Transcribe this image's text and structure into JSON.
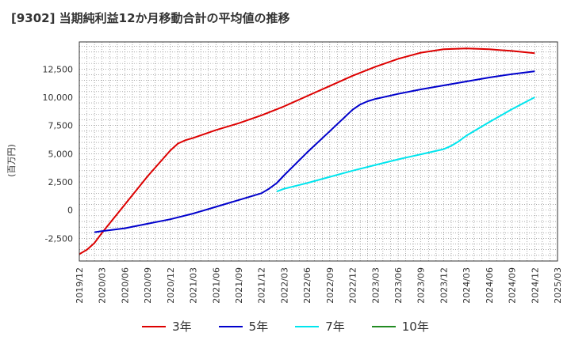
{
  "chart_data": {
    "type": "line",
    "title": "[9302]  当期純利益12か月移動合計の平均値の推移",
    "xlabel": "",
    "ylabel": "(百万円)",
    "xlim": [
      "2019-12",
      "2025-03"
    ],
    "ylim": [
      -4500,
      14900
    ],
    "grid": true,
    "legend_position": "bottom",
    "x_tick_labels": [
      "2019/12",
      "2020/03",
      "2020/06",
      "2020/09",
      "2020/12",
      "2021/03",
      "2021/06",
      "2021/09",
      "2021/12",
      "2022/03",
      "2022/06",
      "2022/09",
      "2022/12",
      "2023/03",
      "2023/06",
      "2023/09",
      "2023/12",
      "2024/03",
      "2024/06",
      "2024/09",
      "2024/12",
      "2025/03"
    ],
    "y_ticks": [
      -2500,
      0,
      2500,
      5000,
      7500,
      10000,
      12500
    ],
    "y_tick_labels": [
      "-2,500",
      "0",
      "2,500",
      "5,000",
      "7,500",
      "10,000",
      "12,500"
    ],
    "series": [
      {
        "name": "3年",
        "color": "#dd0000",
        "x": [
          "2019-12",
          "2020-01",
          "2020-02",
          "2020-03",
          "2020-06",
          "2020-09",
          "2020-12",
          "2021-01",
          "2021-02",
          "2021-03",
          "2021-06",
          "2021-09",
          "2021-12",
          "2022-03",
          "2022-06",
          "2022-09",
          "2022-12",
          "2023-03",
          "2023-06",
          "2023-09",
          "2023-12",
          "2024-03",
          "2024-06",
          "2024-09",
          "2024-12"
        ],
        "y": [
          -3900,
          -3500,
          -2900,
          -2000,
          500,
          3000,
          5300,
          5900,
          6200,
          6400,
          7100,
          7700,
          8400,
          9200,
          10100,
          11000,
          11900,
          12700,
          13400,
          13950,
          14250,
          14320,
          14250,
          14100,
          13900
        ]
      },
      {
        "name": "5年",
        "color": "#0000cc",
        "x": [
          "2020-02",
          "2020-03",
          "2020-06",
          "2020-09",
          "2020-12",
          "2021-03",
          "2021-06",
          "2021-09",
          "2021-12",
          "2022-01",
          "2022-02",
          "2022-03",
          "2022-06",
          "2022-09",
          "2022-12",
          "2023-01",
          "2023-02",
          "2023-03",
          "2023-06",
          "2023-09",
          "2023-12",
          "2024-03",
          "2024-06",
          "2024-09",
          "2024-12"
        ],
        "y": [
          -1950,
          -1850,
          -1600,
          -1200,
          -800,
          -300,
          300,
          900,
          1500,
          1900,
          2400,
          3100,
          5100,
          7000,
          8900,
          9350,
          9650,
          9850,
          10300,
          10700,
          11050,
          11400,
          11750,
          12050,
          12300
        ]
      },
      {
        "name": "7年",
        "color": "#00e5ee",
        "x": [
          "2022-02",
          "2022-03",
          "2022-06",
          "2022-09",
          "2022-12",
          "2023-03",
          "2023-06",
          "2023-09",
          "2023-12",
          "2024-01",
          "2024-02",
          "2024-03",
          "2024-06",
          "2024-09",
          "2024-12"
        ],
        "y": [
          1650,
          1900,
          2400,
          2950,
          3500,
          4000,
          4500,
          4950,
          5400,
          5700,
          6100,
          6600,
          7800,
          8950,
          10000
        ]
      },
      {
        "name": "10年",
        "color": "#228b22",
        "x": [],
        "y": []
      }
    ]
  }
}
